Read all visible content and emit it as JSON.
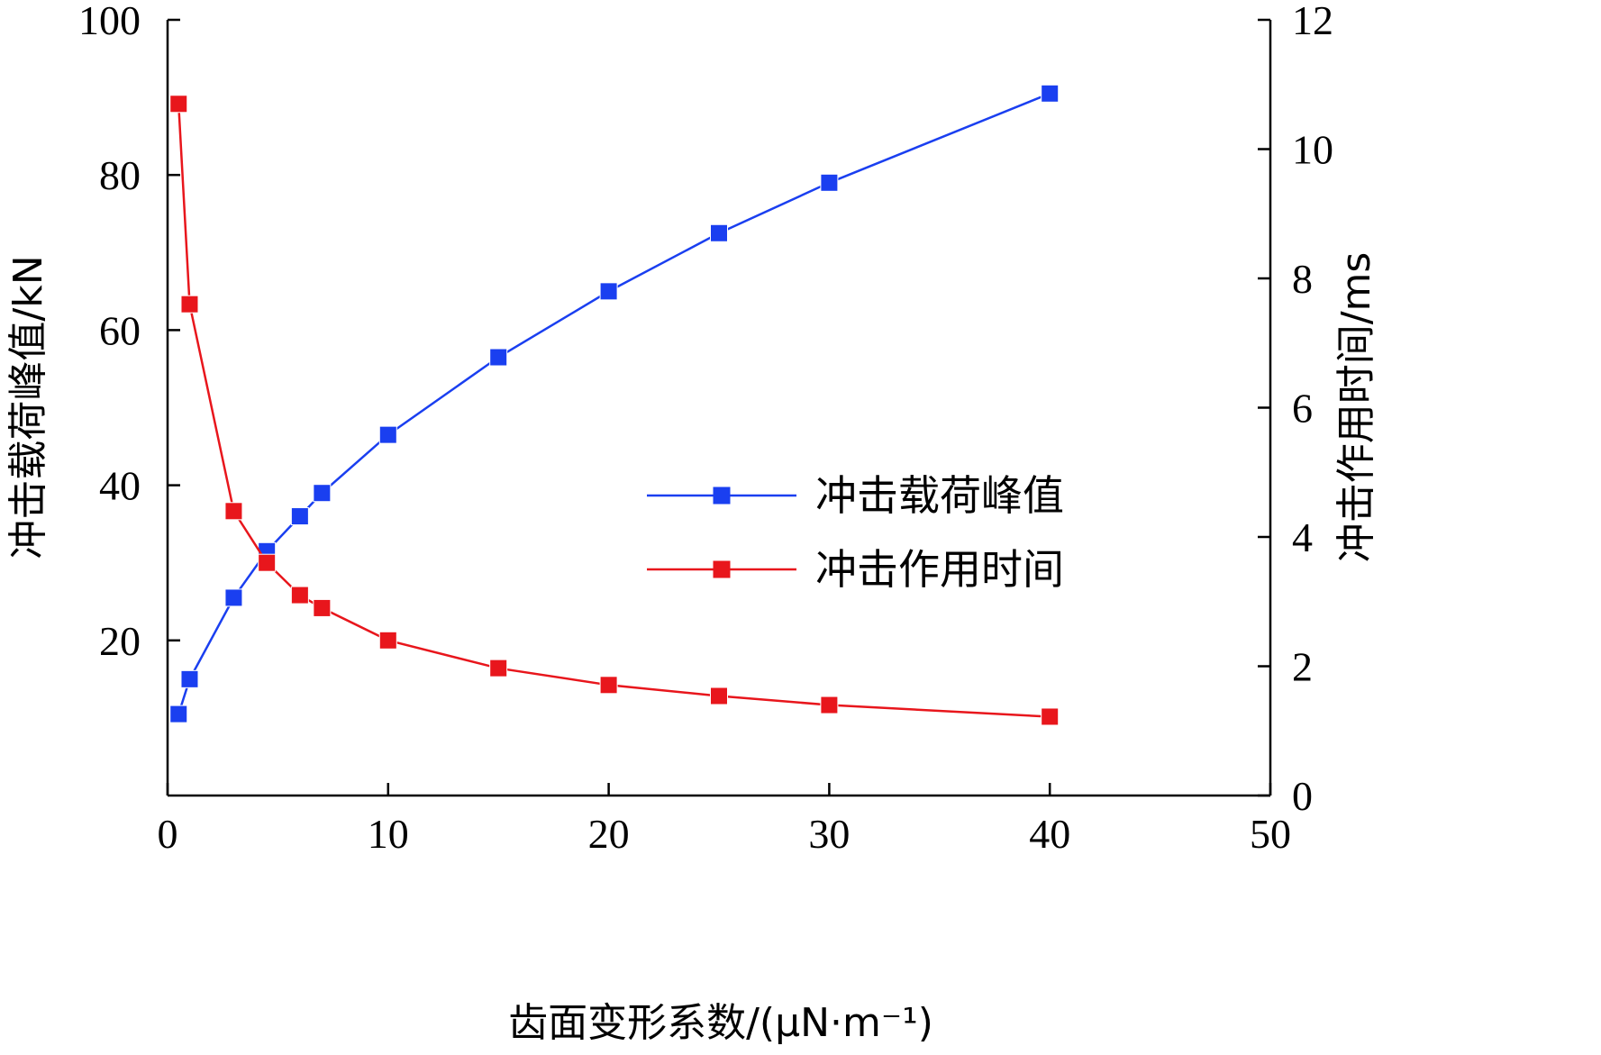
{
  "chart_data": {
    "type": "line",
    "x_axis": {
      "label": "齿面变形系数/(μN·m⁻¹)",
      "range": [
        0,
        50
      ],
      "ticks": [
        0,
        10,
        20,
        30,
        40,
        50
      ],
      "tick_labels": [
        "0",
        "10",
        "20",
        "30",
        "40",
        "50"
      ]
    },
    "y_axis_left": {
      "label": "冲击载荷峰值/kN",
      "range": [
        0,
        100
      ],
      "ticks": [
        20,
        40,
        60,
        80,
        100
      ],
      "tick_labels": [
        "20",
        "40",
        "60",
        "80",
        "100"
      ]
    },
    "y_axis_right": {
      "label": "冲击作用时间/ms",
      "range": [
        0,
        12
      ],
      "ticks": [
        0,
        2,
        4,
        6,
        8,
        10,
        12
      ],
      "tick_labels": [
        "0",
        "2",
        "4",
        "6",
        "8",
        "10",
        "12"
      ]
    },
    "grid": false,
    "legend_position": "center-right",
    "series": [
      {
        "name": "冲击载荷峰值",
        "axis": "left",
        "color": "#1a3ff0",
        "marker": "square",
        "x": [
          0.5,
          1,
          3,
          4.5,
          6,
          7,
          10,
          15,
          20,
          25,
          30,
          40
        ],
        "y": [
          10.5,
          15,
          25.5,
          31.5,
          36,
          39,
          46.5,
          56.5,
          65,
          72.5,
          79,
          90.5
        ]
      },
      {
        "name": "冲击作用时间",
        "axis": "right",
        "color": "#e8161c",
        "marker": "square",
        "x": [
          0.5,
          1,
          3,
          4.5,
          6,
          7,
          10,
          15,
          20,
          25,
          30,
          40
        ],
        "y": [
          10.7,
          7.6,
          4.4,
          3.6,
          3.1,
          2.9,
          2.4,
          1.97,
          1.71,
          1.54,
          1.4,
          1.22
        ]
      }
    ]
  }
}
